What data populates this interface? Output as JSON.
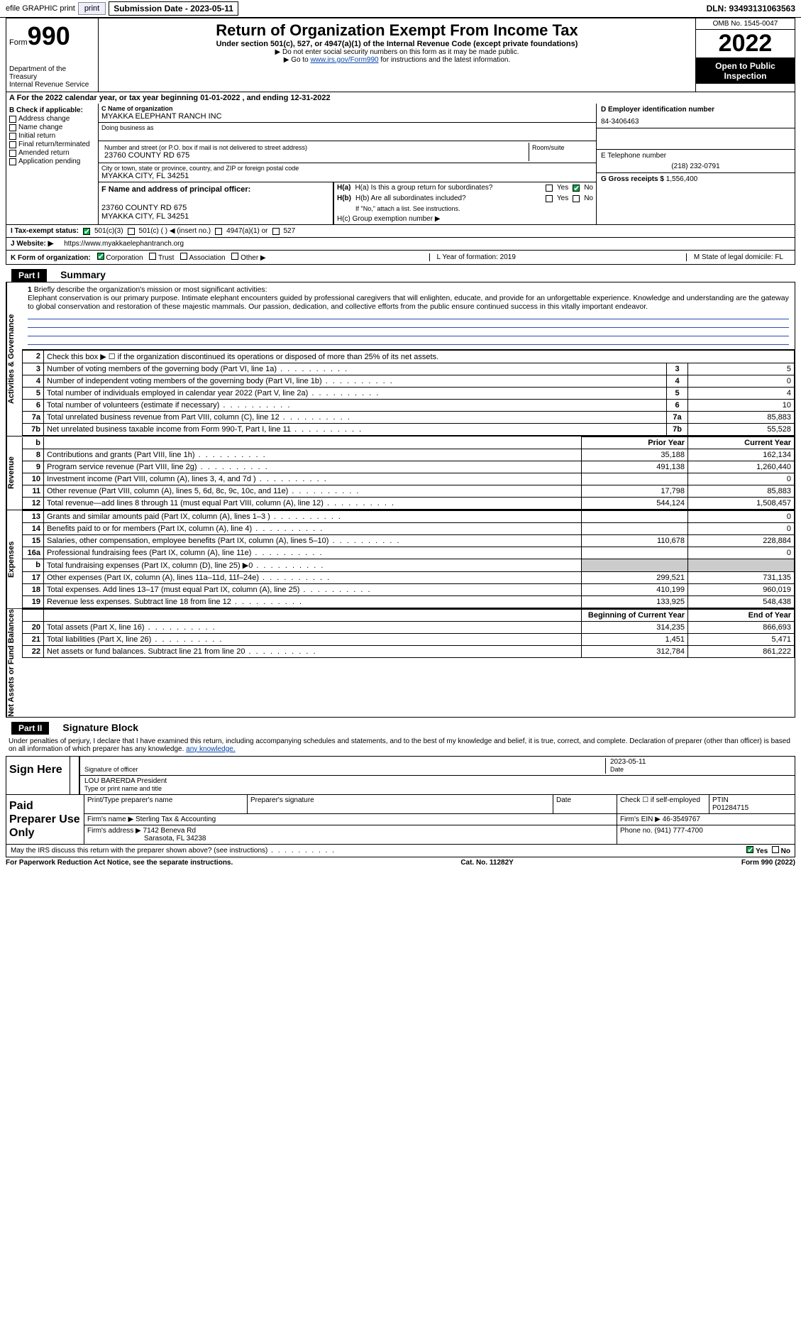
{
  "topbar": {
    "efile": "efile GRAPHIC print",
    "submission": "Submission Date - 2023-05-11",
    "dln": "DLN: 93493131063563"
  },
  "header": {
    "form_word": "Form",
    "form_num": "990",
    "dept": "Department of the Treasury",
    "irs": "Internal Revenue Service",
    "title": "Return of Organization Exempt From Income Tax",
    "subtitle": "Under section 501(c), 527, or 4947(a)(1) of the Internal Revenue Code (except private foundations)",
    "note1": "Do not enter social security numbers on this form as it may be made public.",
    "note2_pre": "Go to ",
    "note2_link": "www.irs.gov/Form990",
    "note2_post": " for instructions and the latest information.",
    "omb": "OMB No. 1545-0047",
    "year": "2022",
    "open": "Open to Public Inspection"
  },
  "row_a": "A For the 2022 calendar year, or tax year beginning 01-01-2022    , and ending 12-31-2022",
  "col_b": {
    "title": "B Check if applicable:",
    "items": [
      "Address change",
      "Name change",
      "Initial return",
      "Final return/terminated",
      "Amended return",
      "Application pending"
    ]
  },
  "col_c": {
    "name_lbl": "C Name of organization",
    "name": "MYAKKA ELEPHANT RANCH INC",
    "dba_lbl": "Doing business as",
    "dba": "",
    "street_lbl": "Number and street (or P.O. box if mail is not delivered to street address)",
    "street": "23760 COUNTY RD 675",
    "room_lbl": "Room/suite",
    "city_lbl": "City or town, state or province, country, and ZIP or foreign postal code",
    "city": "MYAKKA CITY, FL  34251",
    "officer_lbl": "F  Name and address of principal officer:",
    "officer_addr1": "23760 COUNTY RD 675",
    "officer_addr2": "MYAKKA CITY, FL  34251"
  },
  "col_d": {
    "ein_lbl": "D Employer identification number",
    "ein": "84-3406463",
    "phone_lbl": "E Telephone number",
    "phone": "(218) 232-0791",
    "gross_lbl": "G Gross receipts $",
    "gross": "1,556,400"
  },
  "h": {
    "ha": "H(a)  Is this a group return for subordinates?",
    "hb": "H(b)  Are all subordinates included?",
    "hb_note": "If \"No,\" attach a list. See instructions.",
    "hc": "H(c)  Group exemption number ▶",
    "yes": "Yes",
    "no": "No"
  },
  "tax_status": {
    "lbl": "I  Tax-exempt status:",
    "o1": "501(c)(3)",
    "o2": "501(c) (   ) ◀ (insert no.)",
    "o3": "4947(a)(1) or",
    "o4": "527"
  },
  "website": {
    "lbl": "J  Website: ▶",
    "val": "https://www.myakkaelephantranch.org"
  },
  "form_org": {
    "k": "K Form of organization:",
    "opts": [
      "Corporation",
      "Trust",
      "Association",
      "Other ▶"
    ],
    "l": "L Year of formation: 2019",
    "m": "M State of legal domicile: FL"
  },
  "part1": {
    "num": "Part I",
    "title": "Summary"
  },
  "mission": {
    "num": "1",
    "lbl": "Briefly describe the organization's mission or most significant activities:",
    "text": "Elephant conservation is our primary purpose. Intimate elephant encounters guided by professional caregivers that will enlighten, educate, and provide for an unforgettable experience. Knowledge and understanding are the gateway to global conservation and restoration of these majestic mammals. Our passion, dedication, and collective efforts from the public ensure continued success in this vitally important endeavor."
  },
  "line2": "Check this box ▶ ☐  if the organization discontinued its operations or disposed of more than 25% of its net assets.",
  "gov_rows": [
    {
      "n": "3",
      "lbl": "Number of voting members of the governing body (Part VI, line 1a)",
      "box": "3",
      "val": "5"
    },
    {
      "n": "4",
      "lbl": "Number of independent voting members of the governing body (Part VI, line 1b)",
      "box": "4",
      "val": "0"
    },
    {
      "n": "5",
      "lbl": "Total number of individuals employed in calendar year 2022 (Part V, line 2a)",
      "box": "5",
      "val": "4"
    },
    {
      "n": "6",
      "lbl": "Total number of volunteers (estimate if necessary)",
      "box": "6",
      "val": "10"
    },
    {
      "n": "7a",
      "lbl": "Total unrelated business revenue from Part VIII, column (C), line 12",
      "box": "7a",
      "val": "85,883"
    },
    {
      "n": "7b",
      "lbl": "Net unrelated business taxable income from Form 990-T, Part I, line 11",
      "box": "7b",
      "val": "55,528"
    }
  ],
  "vtabs": {
    "gov": "Activities & Governance",
    "rev": "Revenue",
    "exp": "Expenses",
    "net": "Net Assets or Fund Balances"
  },
  "two_col_hdr": {
    "prior": "Prior Year",
    "curr": "Current Year"
  },
  "rev_rows": [
    {
      "n": "8",
      "lbl": "Contributions and grants (Part VIII, line 1h)",
      "p": "35,188",
      "c": "162,134"
    },
    {
      "n": "9",
      "lbl": "Program service revenue (Part VIII, line 2g)",
      "p": "491,138",
      "c": "1,260,440"
    },
    {
      "n": "10",
      "lbl": "Investment income (Part VIII, column (A), lines 3, 4, and 7d )",
      "p": "",
      "c": "0"
    },
    {
      "n": "11",
      "lbl": "Other revenue (Part VIII, column (A), lines 5, 6d, 8c, 9c, 10c, and 11e)",
      "p": "17,798",
      "c": "85,883"
    },
    {
      "n": "12",
      "lbl": "Total revenue—add lines 8 through 11 (must equal Part VIII, column (A), line 12)",
      "p": "544,124",
      "c": "1,508,457"
    }
  ],
  "exp_rows": [
    {
      "n": "13",
      "lbl": "Grants and similar amounts paid (Part IX, column (A), lines 1–3 )",
      "p": "",
      "c": "0"
    },
    {
      "n": "14",
      "lbl": "Benefits paid to or for members (Part IX, column (A), line 4)",
      "p": "",
      "c": "0"
    },
    {
      "n": "15",
      "lbl": "Salaries, other compensation, employee benefits (Part IX, column (A), lines 5–10)",
      "p": "110,678",
      "c": "228,884"
    },
    {
      "n": "16a",
      "lbl": "Professional fundraising fees (Part IX, column (A), line 11e)",
      "p": "",
      "c": "0"
    },
    {
      "n": "b",
      "lbl": "Total fundraising expenses (Part IX, column (D), line 25) ▶0",
      "p": "shade",
      "c": "shade"
    },
    {
      "n": "17",
      "lbl": "Other expenses (Part IX, column (A), lines 11a–11d, 11f–24e)",
      "p": "299,521",
      "c": "731,135"
    },
    {
      "n": "18",
      "lbl": "Total expenses. Add lines 13–17 (must equal Part IX, column (A), line 25)",
      "p": "410,199",
      "c": "960,019"
    },
    {
      "n": "19",
      "lbl": "Revenue less expenses. Subtract line 18 from line 12",
      "p": "133,925",
      "c": "548,438"
    }
  ],
  "net_hdr": {
    "beg": "Beginning of Current Year",
    "end": "End of Year"
  },
  "net_rows": [
    {
      "n": "20",
      "lbl": "Total assets (Part X, line 16)",
      "p": "314,235",
      "c": "866,693"
    },
    {
      "n": "21",
      "lbl": "Total liabilities (Part X, line 26)",
      "p": "1,451",
      "c": "5,471"
    },
    {
      "n": "22",
      "lbl": "Net assets or fund balances. Subtract line 21 from line 20",
      "p": "312,784",
      "c": "861,222"
    }
  ],
  "part2": {
    "num": "Part II",
    "title": "Signature Block"
  },
  "sig_text": "Under penalties of perjury, I declare that I have examined this return, including accompanying schedules and statements, and to the best of my knowledge and belief, it is true, correct, and complete. Declaration of preparer (other than officer) is based on all information of which preparer has any knowledge.",
  "sign": {
    "here": "Sign Here",
    "sig_lbl": "Signature of officer",
    "date": "2023-05-11",
    "date_lbl": "Date",
    "name": "LOU BARERDA President",
    "name_lbl": "Type or print name and title"
  },
  "prep": {
    "title": "Paid Preparer Use Only",
    "h1": "Print/Type preparer's name",
    "h2": "Preparer's signature",
    "h3": "Date",
    "h4": "Check ☐ if self-employed",
    "h5": "PTIN",
    "ptin": "P01284715",
    "firm_lbl": "Firm's name   ▶",
    "firm": "Sterling Tax & Accounting",
    "ein_lbl": "Firm's EIN ▶",
    "ein": "46-3549767",
    "addr_lbl": "Firm's address ▶",
    "addr1": "7142 Beneva Rd",
    "addr2": "Sarasota, FL  34238",
    "phone_lbl": "Phone no.",
    "phone": "(941) 777-4700"
  },
  "discuss": "May the IRS discuss this return with the preparer shown above? (see instructions)",
  "footer": {
    "pra": "For Paperwork Reduction Act Notice, see the separate instructions.",
    "cat": "Cat. No. 11282Y",
    "form": "Form 990 (2022)"
  }
}
